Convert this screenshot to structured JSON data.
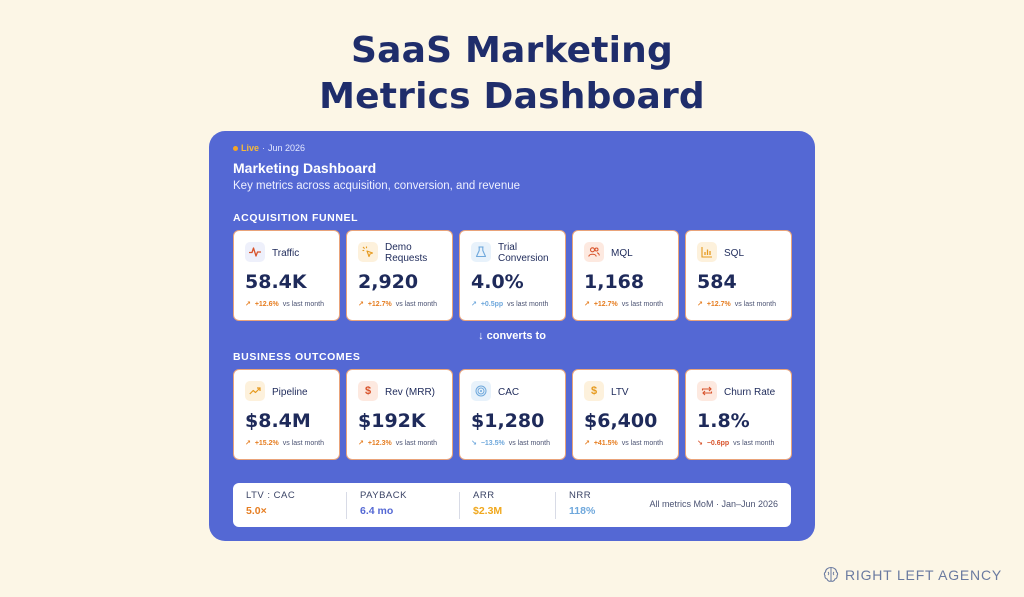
{
  "page": {
    "title_line1": "SaaS Marketing",
    "title_line2": "Metrics Dashboard"
  },
  "dashboard": {
    "live_label": "Live",
    "live_separator": " · ",
    "period": "Jun 2026",
    "title": "Marketing Dashboard",
    "subtitle": "Key metrics across acquisition, conversion, and revenue",
    "colors": {
      "panel": "#5468d4",
      "accent_orange": "#e67e22",
      "accent_blue": "#6fa8dc"
    }
  },
  "acquisition": {
    "section_label": "ACQUISITION FUNNEL",
    "cards": [
      {
        "label": "Traffic",
        "value": "58.4K",
        "arrow": "↗",
        "delta": "+12.6%",
        "delta_suffix": "vs last month",
        "icon": "activity-pulse-icon"
      },
      {
        "label": "Demo Requests",
        "value": "2,920",
        "arrow": "↗",
        "delta": "+12.7%",
        "delta_suffix": "vs last month",
        "icon": "sparkle-cursor-icon"
      },
      {
        "label": "Trial Conversion",
        "value": "4.0%",
        "arrow": "↗",
        "delta": "+0.5pp",
        "delta_suffix": "vs last month",
        "icon": "flask-icon"
      },
      {
        "label": "MQL",
        "value": "1,168",
        "arrow": "↗",
        "delta": "+12.7%",
        "delta_suffix": "vs last month",
        "icon": "users-icon"
      },
      {
        "label": "SQL",
        "value": "584",
        "arrow": "↗",
        "delta": "+12.7%",
        "delta_suffix": "vs last month",
        "icon": "bar-chart-icon"
      }
    ]
  },
  "converts_label": "↓ converts to",
  "outcomes": {
    "section_label": "BUSINESS OUTCOMES",
    "cards": [
      {
        "label": "Pipeline",
        "value": "$8.4M",
        "arrow": "↗",
        "delta": "+15.2%",
        "delta_suffix": "vs last month",
        "icon": "trending-up-icon"
      },
      {
        "label": "Rev (MRR)",
        "value": "$192K",
        "arrow": "↗",
        "delta": "+12.3%",
        "delta_suffix": "vs last month",
        "icon": "dollar-icon"
      },
      {
        "label": "CAC",
        "value": "$1,280",
        "arrow": "↘",
        "delta": "−13.5%",
        "delta_suffix": "vs last month",
        "icon": "target-icon"
      },
      {
        "label": "LTV",
        "value": "$6,400",
        "arrow": "↗",
        "delta": "+41.5%",
        "delta_suffix": "vs last month",
        "icon": "dollar-icon"
      },
      {
        "label": "Churn Rate",
        "value": "1.8%",
        "arrow": "↘",
        "delta": "−0.6pp",
        "delta_suffix": "vs last month",
        "icon": "repeat-arrows-icon"
      }
    ]
  },
  "summary": {
    "items": [
      {
        "label": "LTV : CAC",
        "value": "5.0×",
        "color": "#e67e22"
      },
      {
        "label": "PAYBACK",
        "value": "6.4 mo",
        "color": "#5468d4"
      },
      {
        "label": "ARR",
        "value": "$2.3M",
        "color": "#f0a81e"
      },
      {
        "label": "NRR",
        "value": "118%",
        "color": "#6fa8dc"
      }
    ],
    "note": "All metrics MoM · Jan–Jun 2026"
  },
  "brand": {
    "name": "RIGHT LEFT AGENCY",
    "icon": "brain-logo-icon"
  }
}
